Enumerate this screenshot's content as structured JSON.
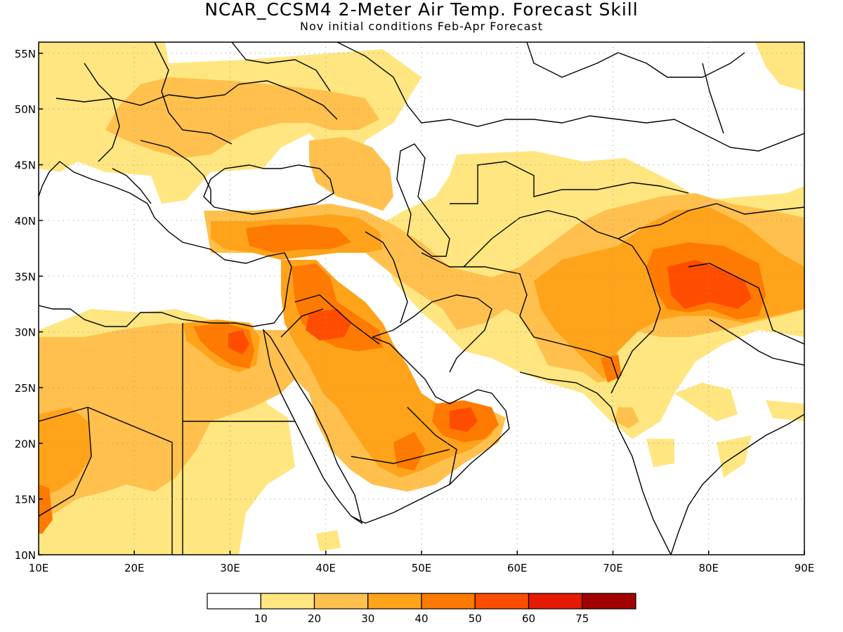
{
  "title": "NCAR_CCSM4 2-Meter Air Temp. Forecast Skill",
  "subtitle": "Nov initial conditions  Feb-Apr Forecast",
  "map": {
    "lon_range": [
      10,
      90
    ],
    "lat_range": [
      10,
      56
    ],
    "x_ticks": [
      "10E",
      "20E",
      "30E",
      "40E",
      "50E",
      "60E",
      "70E",
      "80E",
      "90E"
    ],
    "y_ticks": [
      "10N",
      "15N",
      "20N",
      "25N",
      "30N",
      "35N",
      "40N",
      "45N",
      "50N",
      "55N"
    ],
    "x_tick_values": [
      10,
      20,
      30,
      40,
      50,
      60,
      70,
      80,
      90
    ],
    "y_tick_values": [
      10,
      15,
      20,
      25,
      30,
      35,
      40,
      45,
      50,
      55
    ],
    "grid": true,
    "colors": {
      "c10": "#ffe680",
      "c20": "#ffc04d",
      "c30": "#ffa31a",
      "c40": "#ff7a00",
      "c50": "#ff4d00",
      "c60": "#e61a00",
      "c75": "#a30000"
    }
  },
  "colorbar": {
    "boundary_labels": [
      "10",
      "20",
      "30",
      "40",
      "50",
      "60",
      "75"
    ],
    "colors": [
      "#ffffff",
      "#ffe680",
      "#ffc04d",
      "#ffa31a",
      "#ff7a00",
      "#ff4d00",
      "#e61a00",
      "#a30000"
    ]
  }
}
